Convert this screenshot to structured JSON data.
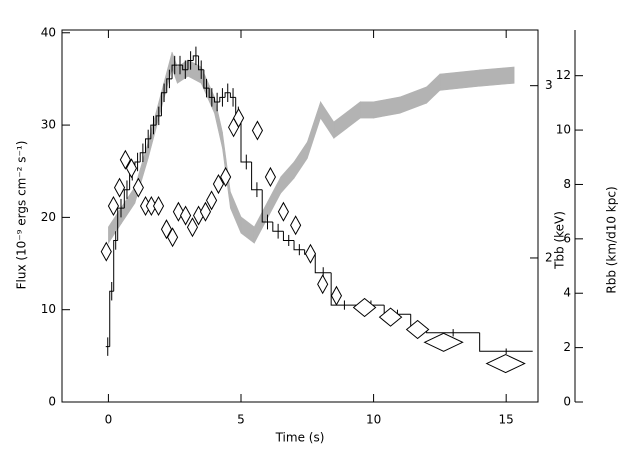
{
  "chart_data": {
    "type": "histogram",
    "xlabel": "Time (s)",
    "ylabel": "Flux (10⁻⁹ ergs cm⁻² s⁻¹)",
    "y2label": "Tbb (keV)",
    "y3label": "Rbb (km/d10 kpc)",
    "xlim": [
      -1.75,
      16.2
    ],
    "xticks": [
      0,
      5,
      10,
      15
    ],
    "ylim": [
      0,
      40.3
    ],
    "yticks": [
      0,
      10,
      20,
      30,
      40
    ],
    "y2lim": [
      1.425,
      3.42
    ],
    "y2ticks": [
      2,
      3
    ],
    "y2log": true,
    "y3lim": [
      0,
      13.68
    ],
    "y3ticks": [
      0,
      2,
      4,
      6,
      8,
      10,
      12
    ],
    "bins": [
      -0.1,
      0.05,
      0.2,
      0.35,
      0.6,
      0.8,
      1.0,
      1.2,
      1.4,
      1.6,
      1.8,
      2.0,
      2.2,
      2.4,
      2.6,
      2.8,
      3.0,
      3.2,
      3.4,
      3.6,
      3.8,
      4.0,
      4.2,
      4.4,
      4.6,
      4.8,
      5.0,
      5.4,
      5.8,
      6.2,
      6.6,
      7.0,
      7.4,
      7.8,
      8.4,
      9.4,
      10.4,
      11.4,
      12.0,
      14.0,
      16.0
    ],
    "values": [
      6,
      12,
      17.5,
      21,
      23,
      25,
      26,
      27,
      28.5,
      30,
      31,
      33.5,
      35,
      36.5,
      36.5,
      36,
      37,
      37.5,
      36,
      34,
      33,
      32.5,
      33,
      33.5,
      33,
      31,
      26,
      23,
      19.5,
      18.5,
      17.5,
      16.5,
      16,
      14,
      10.5,
      10.5,
      9.5,
      8,
      7.5,
      5.5
    ],
    "errors": [
      1,
      1,
      1,
      1,
      1,
      1,
      1,
      1,
      1,
      1,
      1,
      1,
      1,
      1,
      1,
      1,
      1,
      1,
      1,
      1,
      1,
      1,
      1,
      1,
      1,
      1,
      0.8,
      0.8,
      0.8,
      0.8,
      0.6,
      0.6,
      0.6,
      0.6,
      0.5,
      0.5,
      0.5,
      0.4,
      0.4,
      0.3
    ],
    "color": "#000000",
    "series": [
      {
        "type": "scatter",
        "axis": "y2",
        "color": "#000000",
        "x": [
          -0.08,
          0.19,
          0.42,
          0.64,
          0.87,
          1.13,
          1.4,
          1.62,
          1.89,
          2.19,
          2.42,
          2.64,
          2.91,
          3.17,
          3.4,
          3.66,
          3.89,
          4.15,
          4.42,
          4.72,
          4.91,
          5.62,
          6.11,
          6.6,
          7.06,
          7.62,
          8.08,
          8.6,
          9.66,
          10.64,
          11.66,
          12.64,
          14.98
        ],
        "values": [
          2.03,
          2.26,
          2.36,
          2.52,
          2.47,
          2.36,
          2.26,
          2.26,
          2.26,
          2.14,
          2.1,
          2.23,
          2.21,
          2.15,
          2.21,
          2.23,
          2.29,
          2.38,
          2.42,
          2.72,
          2.78,
          2.7,
          2.42,
          2.23,
          2.16,
          2.02,
          1.88,
          1.83,
          1.78,
          1.74,
          1.69,
          1.64,
          1.56
        ]
      },
      {
        "type": "band",
        "axis": "y3",
        "color": "#b3b3b3",
        "x": [
          0,
          0.5,
          1,
          1.5,
          2,
          2.4,
          2.6,
          3,
          3.5,
          4,
          4.3,
          4.6,
          5,
          5.5,
          6,
          6.5,
          7,
          7.5,
          8,
          8.5,
          9,
          9.5,
          10,
          11,
          12,
          12.5,
          14,
          15.3
        ],
        "lower": [
          5.84,
          6.58,
          7.31,
          8.96,
          10.8,
          12.27,
          11.72,
          11.98,
          11.72,
          10.62,
          9.33,
          7.13,
          6.21,
          5.84,
          6.76,
          7.68,
          8.23,
          8.96,
          10.44,
          9.7,
          10.07,
          10.44,
          10.44,
          10.62,
          10.99,
          11.46,
          11.61,
          11.72
        ],
        "upper": [
          6.44,
          7.18,
          7.91,
          9.56,
          11.4,
          12.87,
          12.32,
          12.58,
          12.32,
          11.22,
          9.93,
          7.73,
          6.81,
          6.44,
          7.36,
          8.28,
          8.83,
          9.56,
          11.04,
          10.3,
          10.67,
          11.04,
          11.04,
          11.22,
          11.59,
          12.06,
          12.21,
          12.32
        ]
      }
    ]
  }
}
